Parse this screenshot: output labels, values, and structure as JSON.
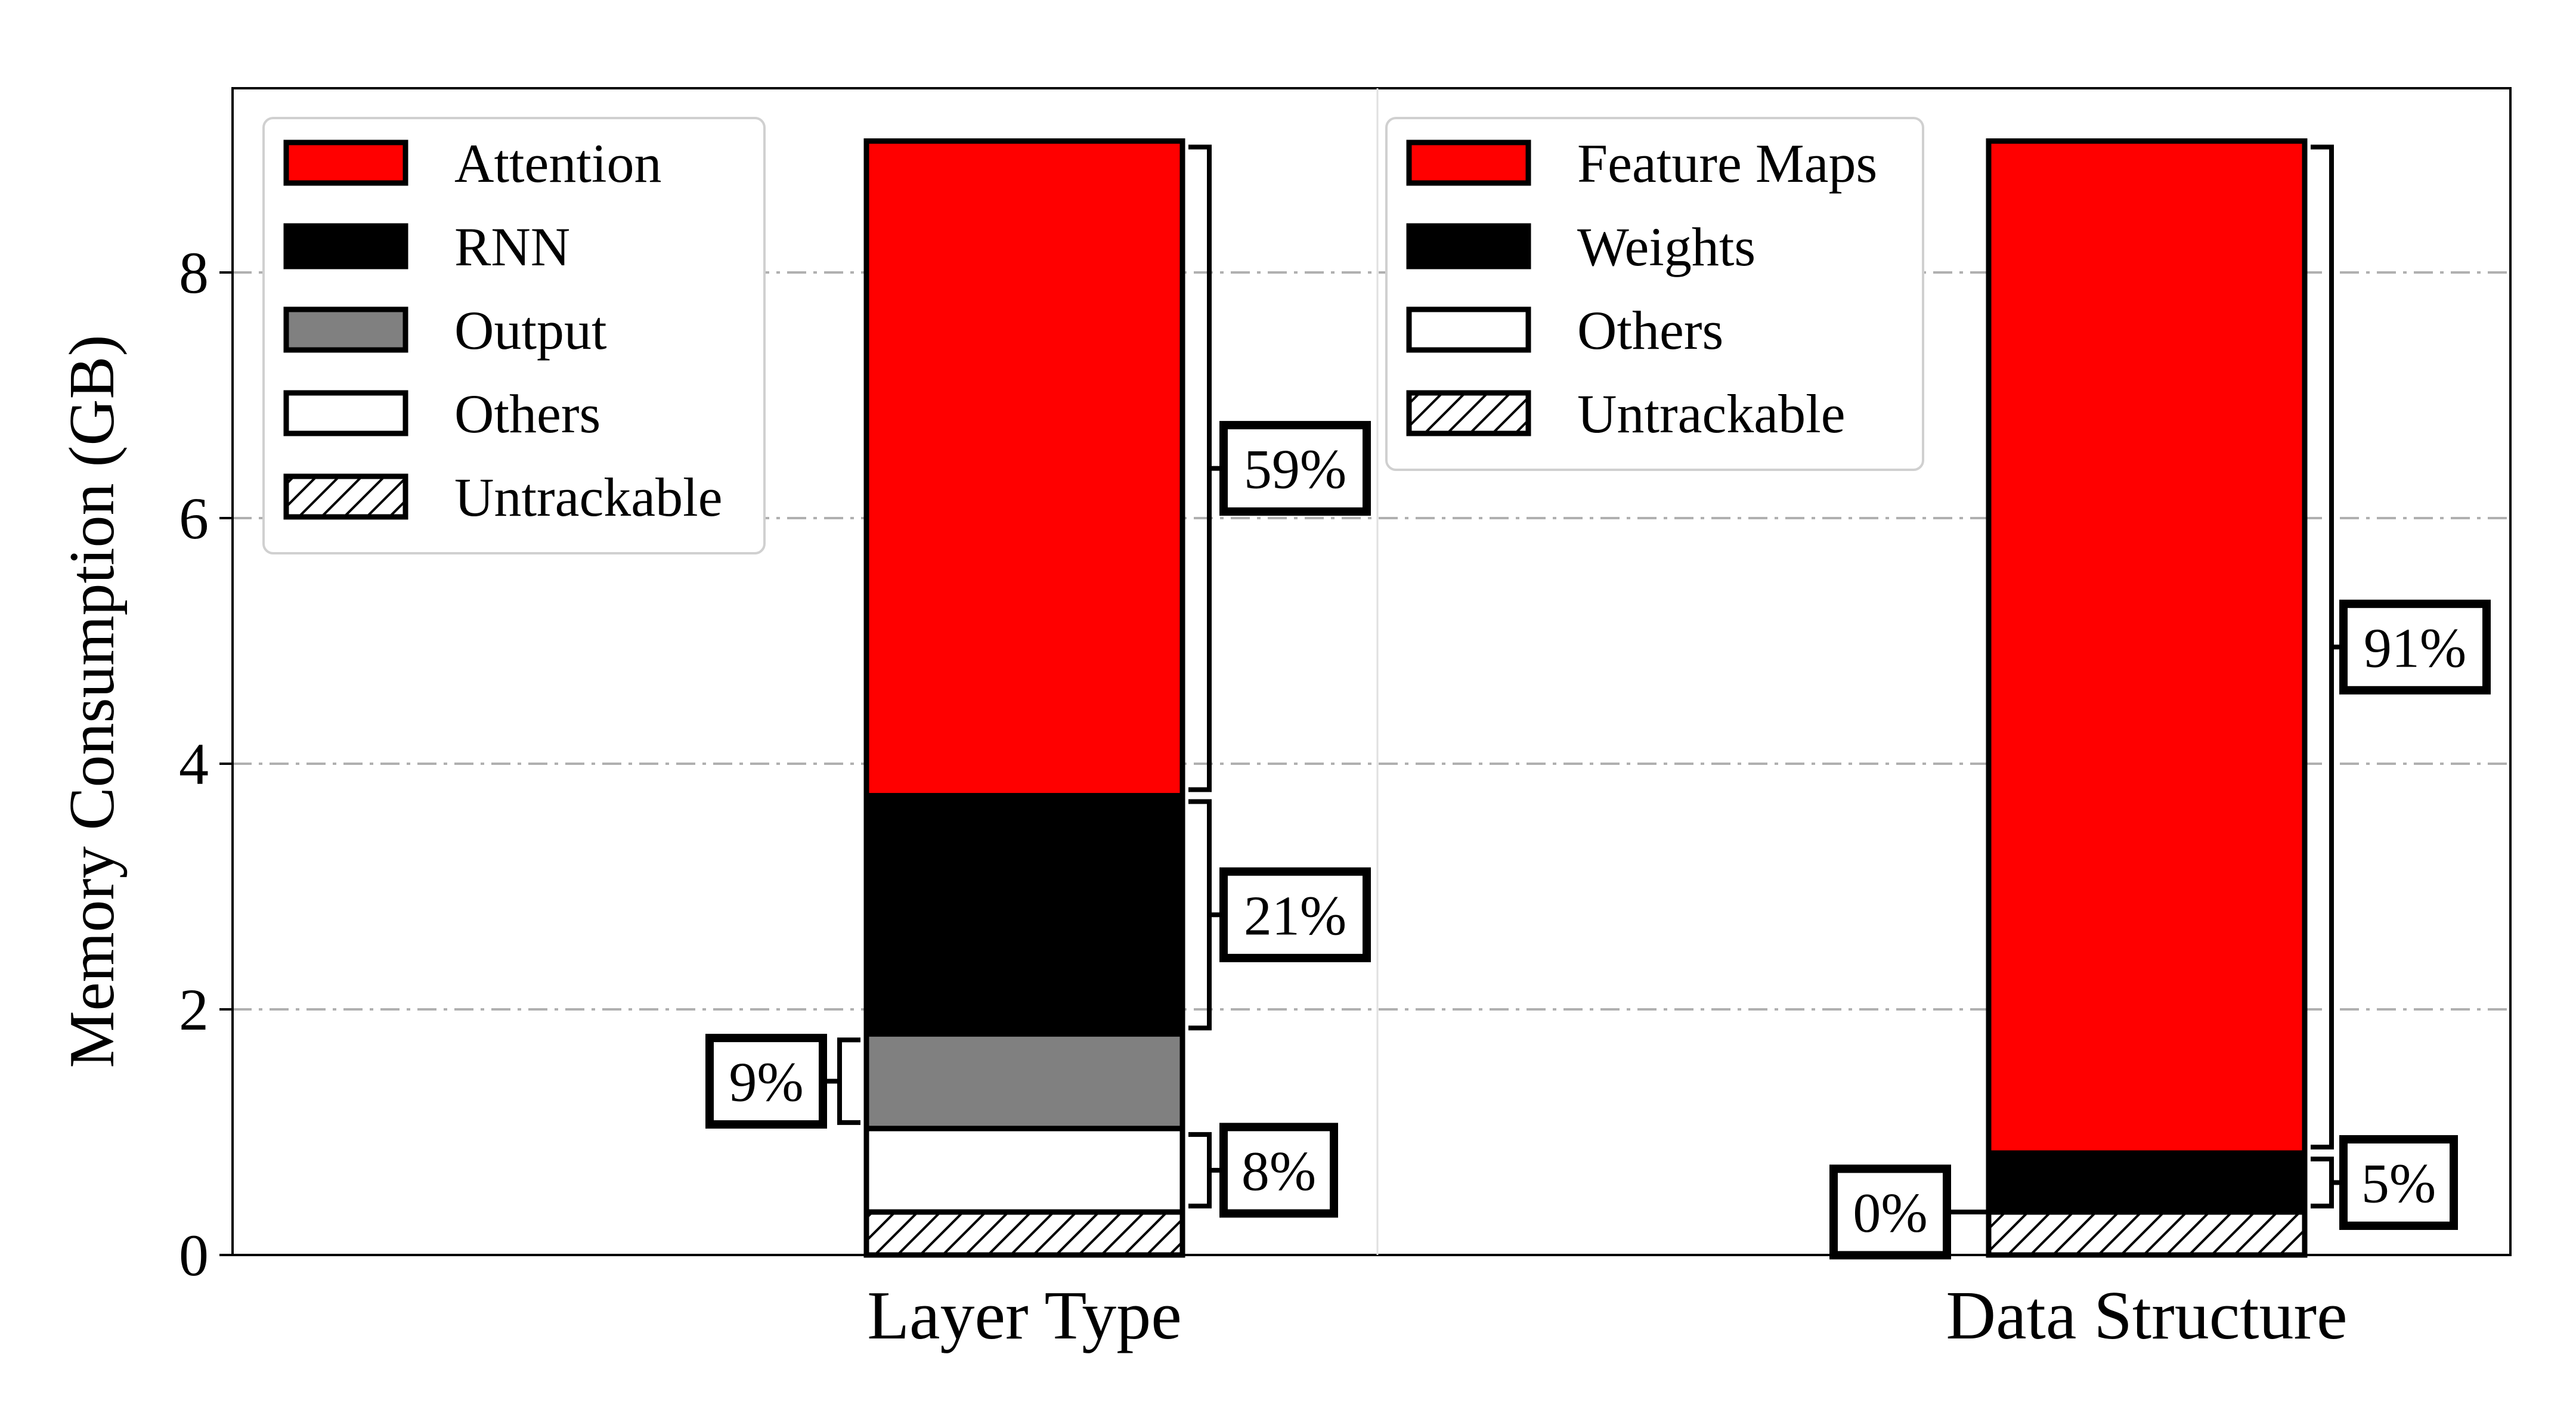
{
  "chart_data": {
    "type": "bar",
    "stacked": true,
    "ylabel": "Memory Consumption (GB)",
    "ylim": [
      0,
      9.5
    ],
    "yticks": [
      0,
      2,
      4,
      6,
      8
    ],
    "grid": "horizontal dash-dot",
    "panels": [
      {
        "category": "Layer Type",
        "legend_position": "top-left",
        "segments": [
          {
            "name": "Untrackable",
            "value": 0.35,
            "fill": "hatch"
          },
          {
            "name": "Others",
            "value": 0.68,
            "fill": "#ffffff"
          },
          {
            "name": "Output",
            "value": 0.77,
            "fill": "#808080"
          },
          {
            "name": "RNN",
            "value": 1.94,
            "fill": "#000000"
          },
          {
            "name": "Attention",
            "value": 5.33,
            "fill": "#ff0000"
          }
        ],
        "annotations": [
          {
            "label": "59%",
            "side": "right",
            "from": 3.74,
            "to": 9.07
          },
          {
            "label": "21%",
            "side": "right",
            "from": 1.8,
            "to": 3.74
          },
          {
            "label": "9%",
            "side": "left",
            "from": 1.03,
            "to": 1.8
          },
          {
            "label": "8%",
            "side": "right",
            "from": 0.35,
            "to": 1.03
          }
        ]
      },
      {
        "category": "Data Structure",
        "legend_position": "top-center",
        "segments": [
          {
            "name": "Untrackable",
            "value": 0.35,
            "fill": "hatch"
          },
          {
            "name": "Others",
            "value": 0.0,
            "fill": "#ffffff"
          },
          {
            "name": "Weights",
            "value": 0.48,
            "fill": "#000000"
          },
          {
            "name": "Feature Maps",
            "value": 8.24,
            "fill": "#ff0000"
          }
        ],
        "annotations": [
          {
            "label": "91%",
            "side": "right",
            "from": 0.83,
            "to": 9.07
          },
          {
            "label": "5%",
            "side": "right",
            "from": 0.35,
            "to": 0.83
          },
          {
            "label": "0%",
            "side": "left",
            "from": 0.35,
            "to": 0.35
          }
        ]
      }
    ],
    "legends": [
      {
        "panel": 0,
        "entries": [
          {
            "label": "Attention",
            "fill": "#ff0000"
          },
          {
            "label": "RNN",
            "fill": "#000000"
          },
          {
            "label": "Output",
            "fill": "#808080"
          },
          {
            "label": "Others",
            "fill": "#ffffff"
          },
          {
            "label": "Untrackable",
            "fill": "hatch"
          }
        ]
      },
      {
        "panel": 1,
        "entries": [
          {
            "label": "Feature Maps",
            "fill": "#ff0000"
          },
          {
            "label": "Weights",
            "fill": "#000000"
          },
          {
            "label": "Others",
            "fill": "#ffffff"
          },
          {
            "label": "Untrackable",
            "fill": "hatch"
          }
        ]
      }
    ]
  }
}
